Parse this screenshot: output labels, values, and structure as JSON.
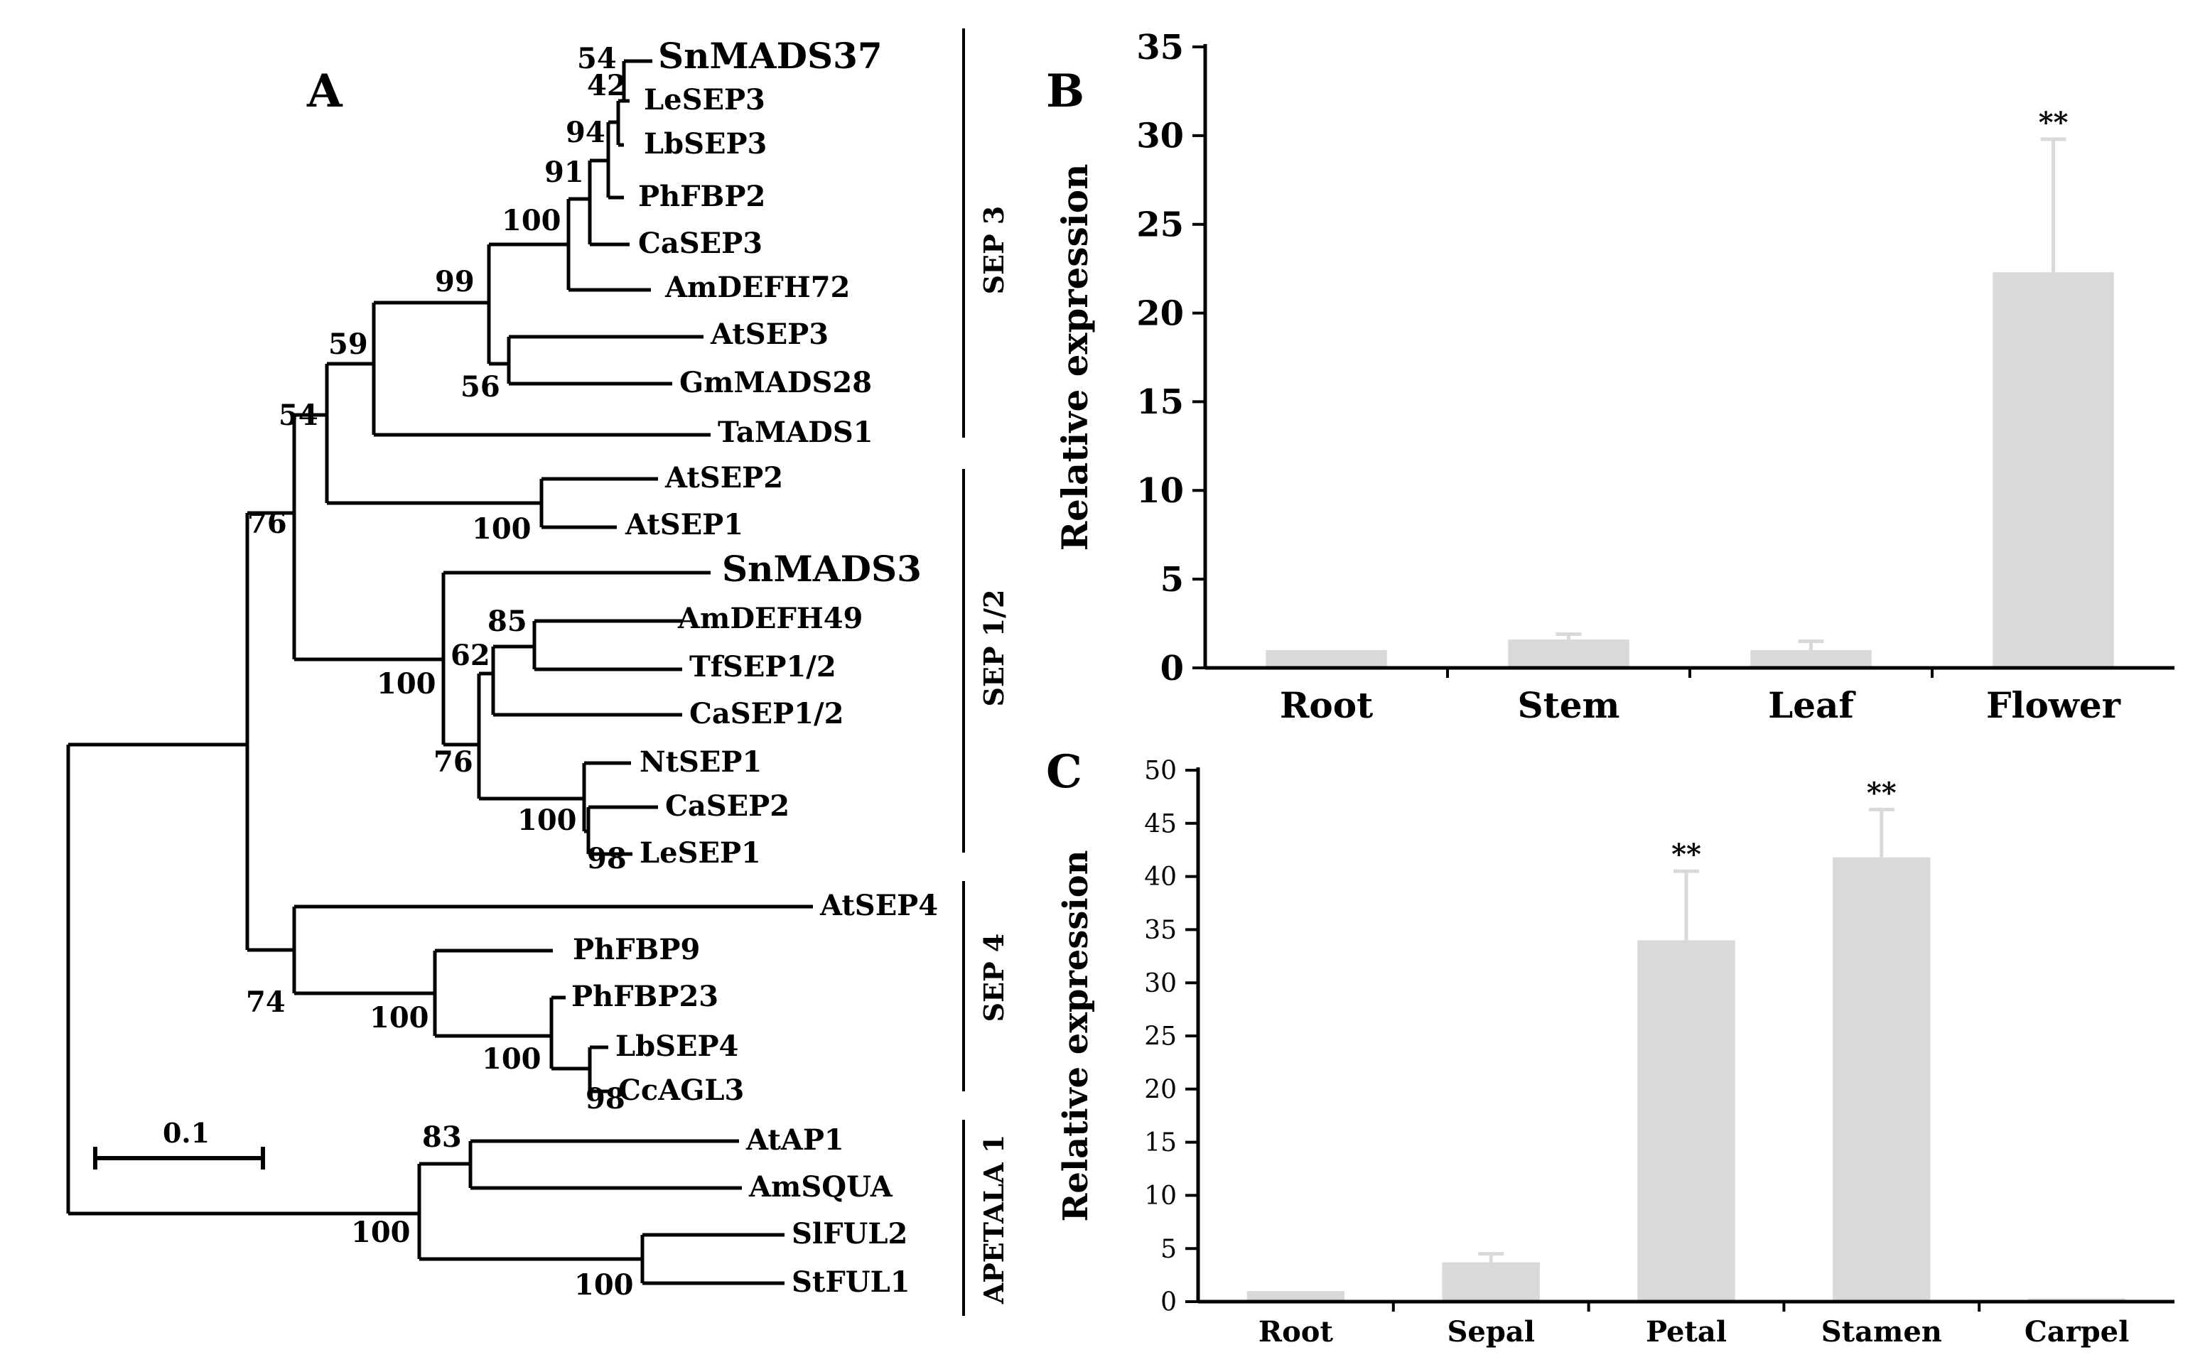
{
  "panels": {
    "a": "A",
    "b": "B",
    "c": "C"
  },
  "colors": {
    "bar": "#d9d9d9",
    "line": "#000000"
  },
  "tree": {
    "scale_label": "0.1",
    "clade_labels": [
      "SEP 3",
      "SEP 1/2",
      "SEP 4",
      "APETALA 1"
    ],
    "taxa": [
      "SnMADS37",
      "LeSEP3",
      "LbSEP3",
      "PhFBP2",
      "CaSEP3",
      "AmDEFH72",
      "AtSEP3",
      "GmMADS28",
      "TaMADS1",
      "AtSEP2",
      "AtSEP1",
      "SnMADS3",
      "AmDEFH49",
      "TfSEP1/2",
      "CaSEP1/2",
      "NtSEP1",
      "CaSEP2",
      "LeSEP1",
      "AtSEP4",
      "PhFBP9",
      "PhFBP23",
      "LbSEP4",
      "CcAGL3",
      "AtAP1",
      "AmSQUA",
      "SlFUL2",
      "StFUL1"
    ],
    "bootstrap": [
      "54",
      "42",
      "94",
      "91",
      "100",
      "99",
      "56",
      "59",
      "54",
      "100",
      "76",
      "85",
      "62",
      "100",
      "76",
      "100",
      "98",
      "74",
      "100",
      "100",
      "98",
      "83",
      "100",
      "100"
    ]
  },
  "chart_data": [
    {
      "panel": "B",
      "type": "bar",
      "categories": [
        "Root",
        "Stem",
        "Leaf",
        "Flower"
      ],
      "values": [
        1.0,
        1.6,
        1.0,
        22.3
      ],
      "errors": [
        0.0,
        0.3,
        0.5,
        7.5
      ],
      "annotations": [
        "",
        "",
        "",
        "**"
      ],
      "ylabel": "Relative expression",
      "yticks": [
        "0",
        "5",
        "10",
        "15",
        "20",
        "25",
        "30",
        "35"
      ],
      "ylim": [
        0,
        35
      ]
    },
    {
      "panel": "C",
      "type": "bar",
      "categories": [
        "Root",
        "Sepal",
        "Petal",
        "Stamen",
        "Carpel"
      ],
      "values": [
        1.0,
        3.7,
        34.0,
        41.8,
        0.3
      ],
      "errors": [
        0.0,
        0.8,
        6.5,
        4.5,
        0.0
      ],
      "annotations": [
        "",
        "",
        "**",
        "**",
        ""
      ],
      "ylabel": "Relative expression",
      "yticks": [
        "0",
        "5",
        "10",
        "15",
        "20",
        "25",
        "30",
        "35",
        "40",
        "45",
        "50"
      ],
      "ylim": [
        0,
        50
      ]
    }
  ]
}
